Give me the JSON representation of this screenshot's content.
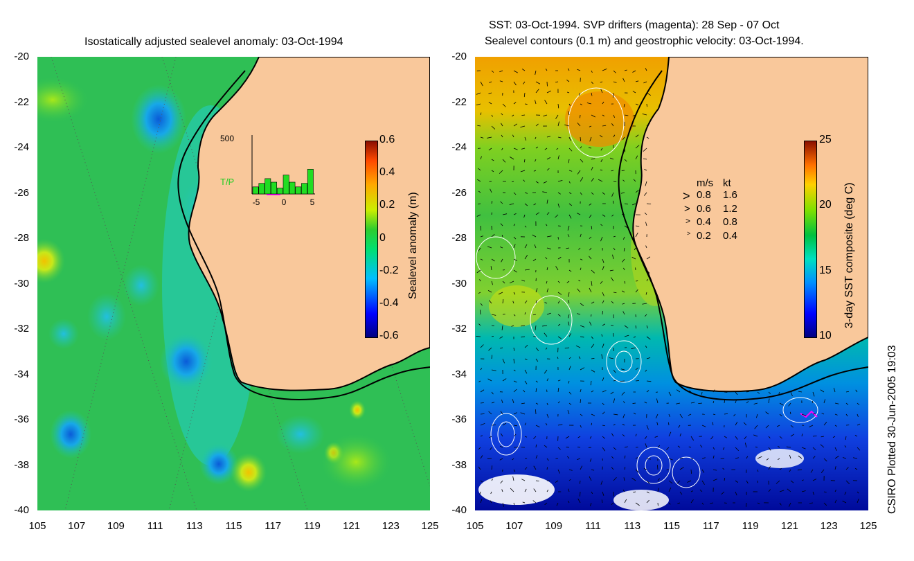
{
  "left_panel": {
    "title": "Isostatically adjusted sealevel anomaly: 03-Oct-1994",
    "colorbar_label": "Sealevel anomaly (m)",
    "colorbar_ticks": [
      "0.6",
      "0.4",
      "0.2",
      "0",
      "-0.2",
      "-0.4",
      "-0.6"
    ],
    "inset": {
      "ymax_label": "500",
      "series_label": "T/P",
      "x_ticks": [
        "-5",
        "0",
        "5"
      ],
      "bars": [
        60,
        90,
        130,
        100,
        50,
        160,
        100,
        60,
        90,
        210
      ],
      "bars_max": 500
    }
  },
  "right_panel": {
    "title_line1": "SST: 03-Oct-1994. SVP drifters (magenta): 28 Sep - 07 Oct",
    "title_line2": "Sealevel contours (0.1 m) and geostrophic velocity: 03-Oct-1994.",
    "colorbar_label": "3-day SST composite (deg C)",
    "colorbar_ticks": [
      "25",
      "20",
      "15",
      "10"
    ],
    "speed_legend": {
      "header_ms": "m/s",
      "header_kt": "kt",
      "rows": [
        {
          "ms": "0.8",
          "kt": "1.6"
        },
        {
          "ms": "0.6",
          "kt": "1.2"
        },
        {
          "ms": "0.4",
          "kt": "0.8"
        },
        {
          "ms": "0.2",
          "kt": "0.4"
        }
      ]
    }
  },
  "axes": {
    "y_ticks": [
      "-20",
      "-22",
      "-24",
      "-26",
      "-28",
      "-30",
      "-32",
      "-34",
      "-36",
      "-38",
      "-40"
    ],
    "x_ticks": [
      "105",
      "107",
      "109",
      "111",
      "113",
      "115",
      "117",
      "119",
      "121",
      "123",
      "125"
    ]
  },
  "credit": "CSIRO Plotted 30-Jun-2005 19:03",
  "colors": {
    "land": "#f9c89b",
    "ocean_green": "#2fbf55",
    "contour": "#ffffff"
  }
}
